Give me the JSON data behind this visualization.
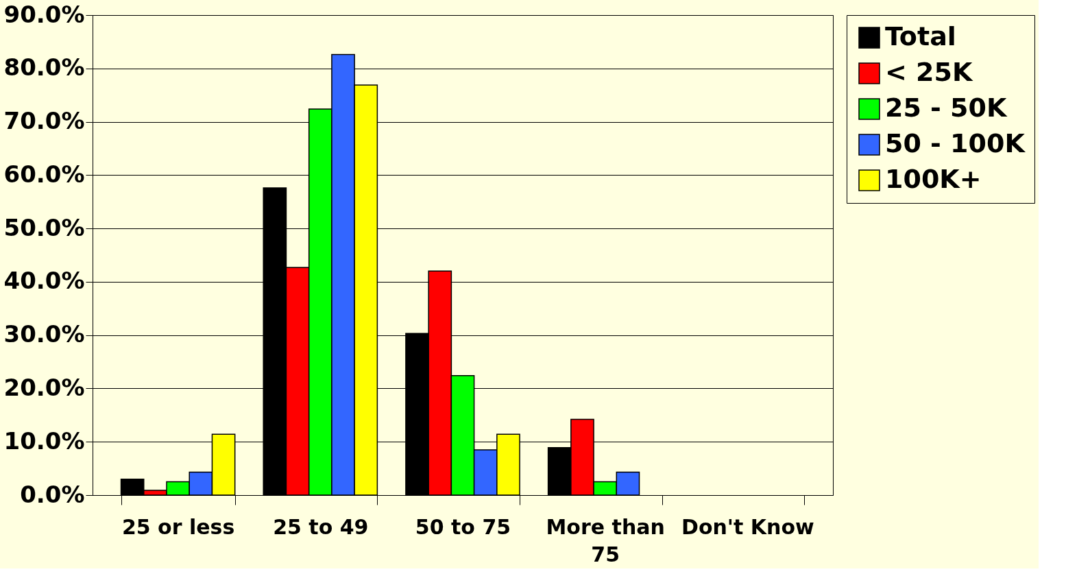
{
  "chart_data": {
    "type": "bar",
    "categories": [
      "25 or less",
      "25 to 49",
      "50 to 75",
      "More than 75",
      "Don't Know"
    ],
    "series": [
      {
        "name": "Total",
        "color": "#000000",
        "values": [
          3.0,
          57.6,
          30.3,
          8.9,
          null
        ]
      },
      {
        "name": "< 25K",
        "color": "#ff0000",
        "values": [
          0.9,
          42.7,
          42.0,
          14.2,
          null
        ]
      },
      {
        "name": "25 - 50K",
        "color": "#00ff00",
        "values": [
          2.5,
          72.4,
          22.4,
          2.5,
          null
        ]
      },
      {
        "name": "50 - 100K",
        "color": "#3366ff",
        "values": [
          4.3,
          82.6,
          8.5,
          4.3,
          null
        ]
      },
      {
        "name": "100K+",
        "color": "#ffff00",
        "values": [
          11.4,
          76.9,
          11.4,
          null,
          null
        ]
      }
    ],
    "ylim": [
      0,
      90
    ],
    "yticks": [
      {
        "value": 0,
        "label": "0.0%"
      },
      {
        "value": 10,
        "label": "10.0%"
      },
      {
        "value": 20,
        "label": "20.0%"
      },
      {
        "value": 30,
        "label": "30.0%"
      },
      {
        "value": 40,
        "label": "40.0%"
      },
      {
        "value": 50,
        "label": "50.0%"
      },
      {
        "value": 60,
        "label": "60.0%"
      },
      {
        "value": 70,
        "label": "70.0%"
      },
      {
        "value": 80,
        "label": "80.0%"
      },
      {
        "value": 90,
        "label": "90.0%"
      }
    ],
    "grid": "y",
    "legend": "right"
  }
}
